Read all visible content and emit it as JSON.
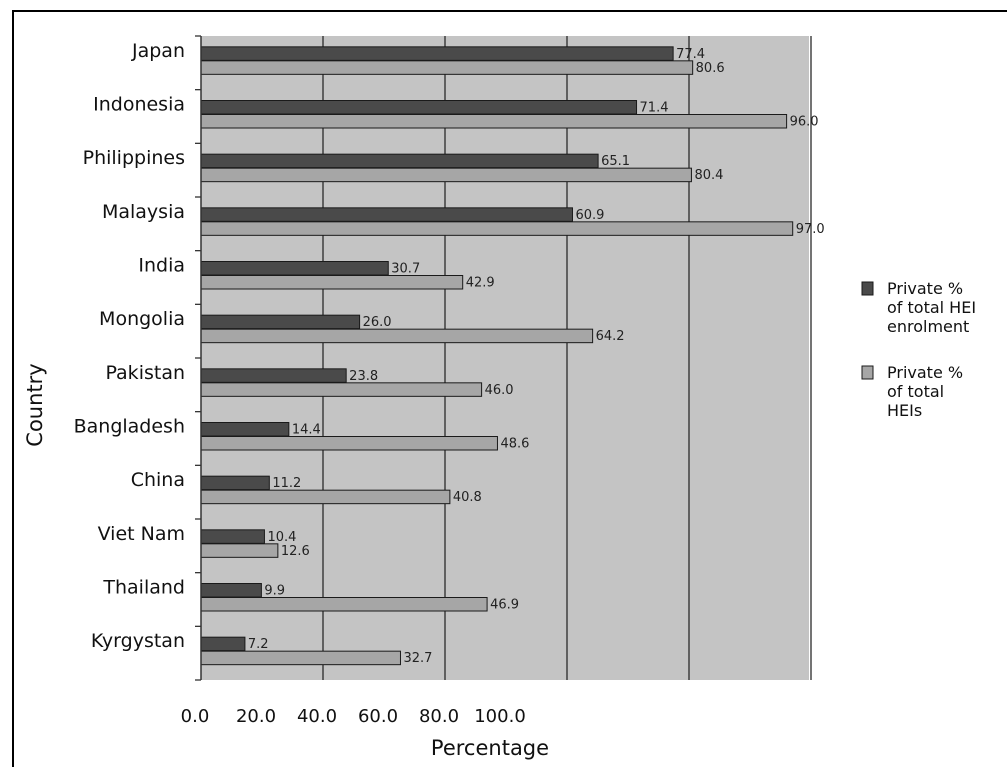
{
  "chart_data": {
    "type": "bar",
    "orientation": "horizontal",
    "title": "",
    "xlabel": "Percentage",
    "ylabel": "Country",
    "xlim": [
      0,
      100
    ],
    "x_ticks": [
      "0.0",
      "20.0",
      "40.0",
      "60.0",
      "80.0",
      "100.0"
    ],
    "grid": "vertical",
    "legend_position": "right",
    "categories": [
      "Japan",
      "Indonesia",
      "Philippines",
      "Malaysia",
      "India",
      "Mongolia",
      "Pakistan",
      "Bangladesh",
      "China",
      "Viet Nam",
      "Thailand",
      "Kyrgystan"
    ],
    "series": [
      {
        "name": "Private % of total HEI enrolment",
        "legend_lines": [
          "Private %",
          "of total HEI",
          "enrolment"
        ],
        "color": "#4a4a4a",
        "values": [
          77.4,
          71.4,
          65.1,
          60.9,
          30.7,
          26.0,
          23.8,
          14.4,
          11.2,
          10.4,
          9.9,
          7.2
        ],
        "labels": [
          "77.4",
          "71.4",
          "65.1",
          "60.9",
          "30.7",
          "26.0",
          "23.8",
          "14.4",
          "11.2",
          "10.4",
          "9.9",
          "7.2"
        ]
      },
      {
        "name": "Private % of total HEIs",
        "legend_lines": [
          "Private %",
          "of total",
          "HEIs"
        ],
        "color": "#a6a6a6",
        "values": [
          80.6,
          96.0,
          80.4,
          97.0,
          42.9,
          64.2,
          46.0,
          48.6,
          40.8,
          12.6,
          46.9,
          32.7
        ],
        "labels": [
          "80.6",
          "96.0",
          "80.4",
          "97.0",
          "42.9",
          "64.2",
          "46.0",
          "48.6",
          "40.8",
          "12.6",
          "46.9",
          "32.7"
        ]
      }
    ]
  }
}
